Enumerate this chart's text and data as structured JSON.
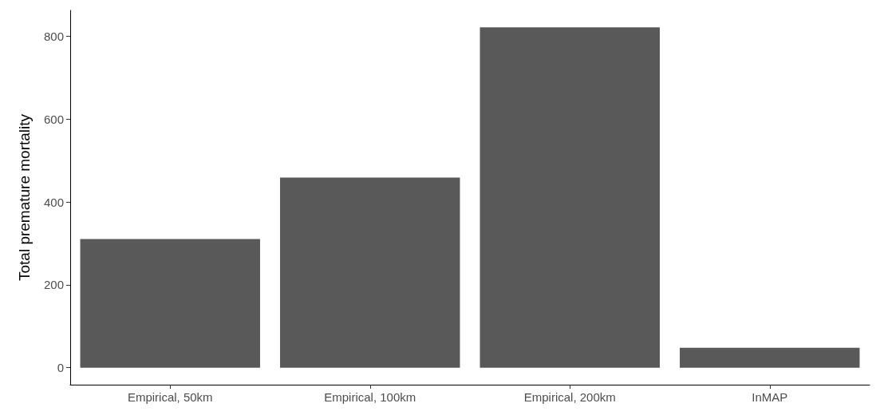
{
  "chart_data": {
    "type": "bar",
    "ylabel": "Total premature mortality",
    "categories": [
      "Empirical, 50km",
      "Empirical, 100km",
      "Empirical, 200km",
      "InMAP"
    ],
    "values": [
      311,
      459,
      822,
      48
    ],
    "color": "#595959",
    "ylim": [
      -41,
      863
    ],
    "yticks": [
      0,
      200,
      400,
      600,
      800
    ],
    "grid": false
  }
}
